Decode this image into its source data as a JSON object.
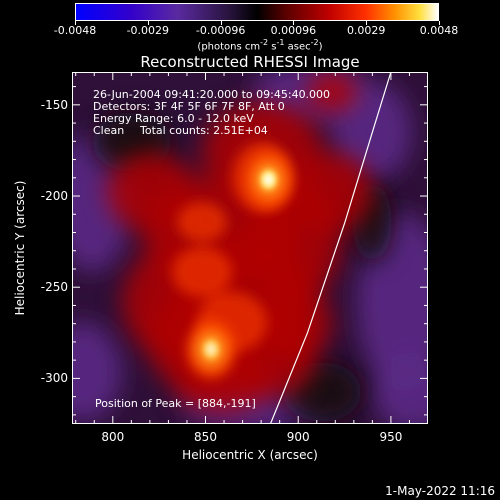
{
  "colorbar": {
    "ticks": [
      "-0.0048",
      "-0.0029",
      "-0.00096",
      "0.00096",
      "0.0029",
      "0.0048"
    ],
    "unit_label": {
      "prefix": "(photons cm",
      "exp1": "-2",
      "mid1": " s",
      "exp2": "-1",
      "mid2": " asec",
      "exp3": "-2",
      "suffix": ")"
    }
  },
  "chart_data": {
    "type": "heatmap",
    "title": "Reconstructed RHESSI Image",
    "xlabel": "Heliocentric X (arcsec)",
    "ylabel": "Heliocentric Y (arcsec)",
    "xlim": [
      778,
      970
    ],
    "ylim": [
      -325,
      -132
    ],
    "x_ticks": [
      800,
      850,
      900,
      950
    ],
    "y_ticks": [
      -150,
      -200,
      -250,
      -300
    ],
    "color_range": [
      -0.0048,
      0.0048
    ],
    "colormap": "rainbow-blue-black-red-yellow-white",
    "sources": [
      {
        "x": 884,
        "y": -191,
        "value": 0.0048
      },
      {
        "x": 853,
        "y": -284,
        "value": 0.0032
      }
    ],
    "limb_curve": [
      [
        885,
        -325
      ],
      [
        905,
        -275
      ],
      [
        925,
        -215
      ],
      [
        940,
        -165
      ],
      [
        950,
        -132
      ]
    ],
    "info_lines": [
      "26-Jun-2004 09:41:20.000 to 09:45:40.000",
      "Detectors: 3F 4F 5F 6F 7F 8F, Att 0",
      "Energy Range: 6.0 - 12.0 keV"
    ],
    "clean_label": "Clean",
    "total_counts": "Total counts: 2.51E+04",
    "peak_label": "Position of Peak = [884,-191]"
  },
  "timestamp": "1-May-2022 11:16"
}
